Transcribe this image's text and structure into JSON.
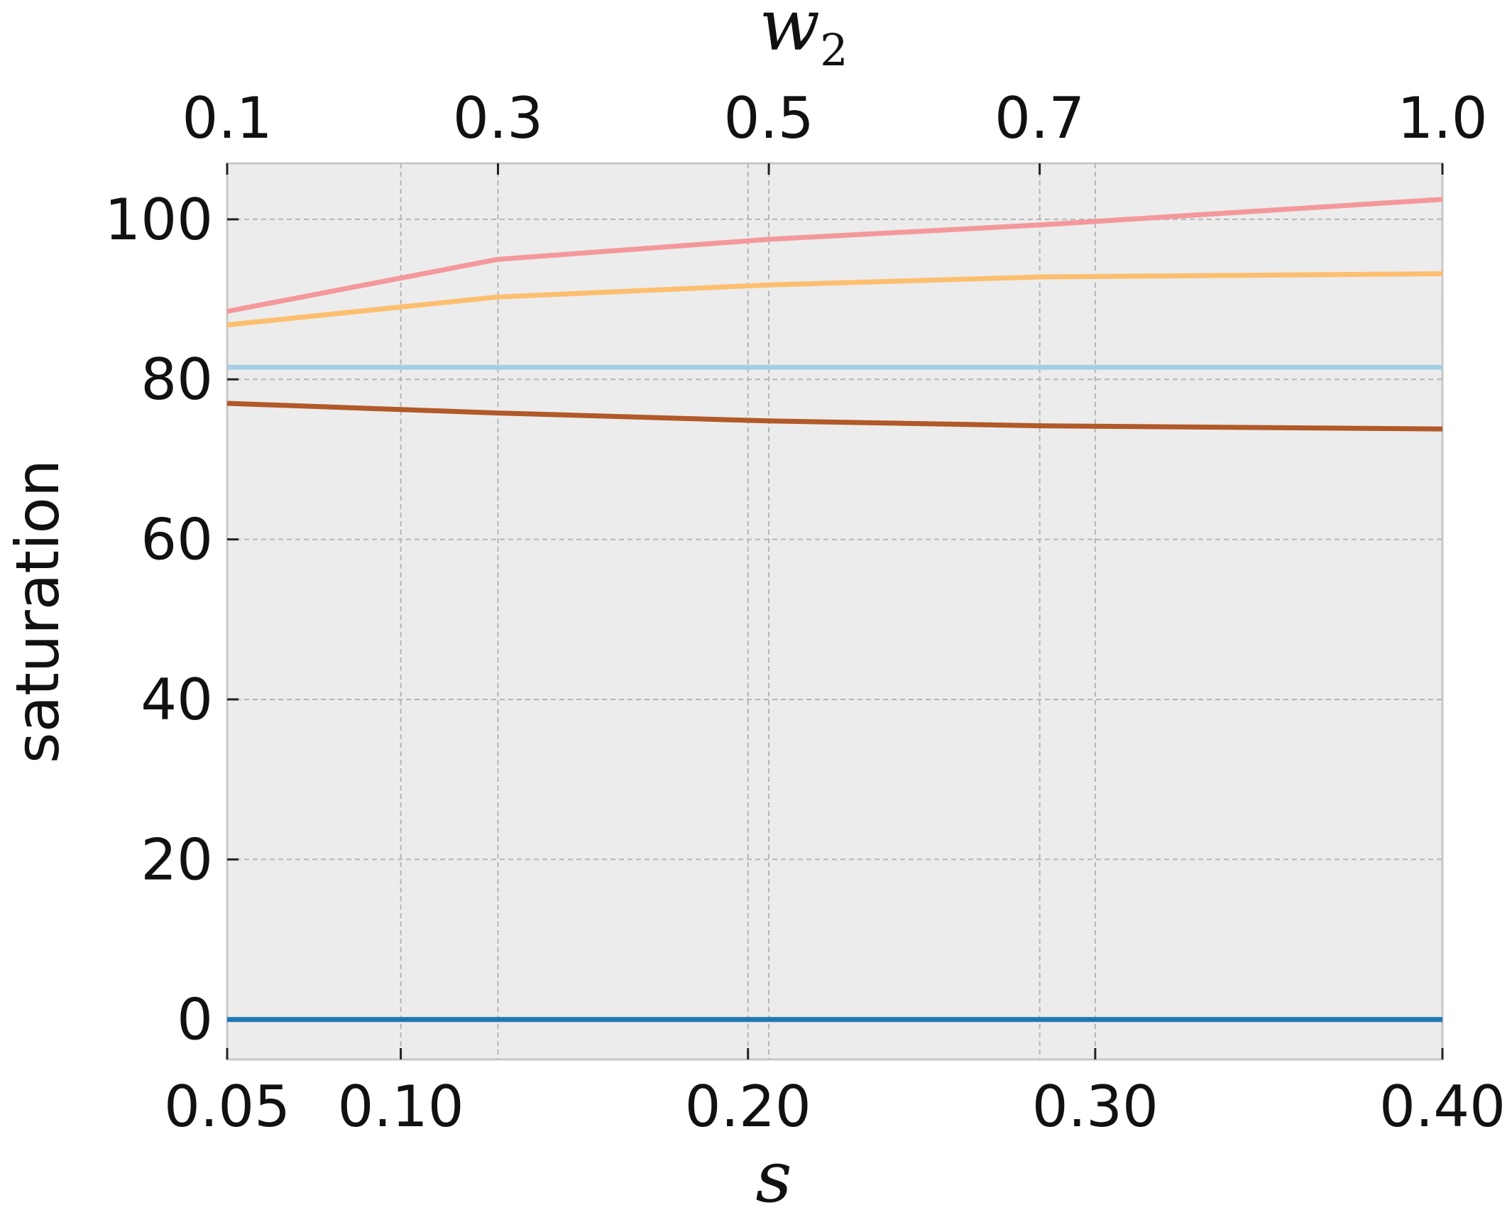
{
  "chart_data": {
    "type": "line",
    "ylabel": "saturation",
    "xlabel_bottom": "s",
    "xlabel_top_base": "w",
    "xlabel_top_sub": "2",
    "ylim": [
      -5,
      107
    ],
    "bottom_axis": {
      "xlim": [
        0.05,
        0.4
      ],
      "ticks": [
        0.05,
        0.1,
        0.2,
        0.3,
        0.4
      ],
      "tick_labels": [
        "0.05",
        "0.10",
        "0.20",
        "0.30",
        "0.40"
      ]
    },
    "top_axis": {
      "ticks": [
        0.1,
        0.3,
        0.5,
        0.7,
        1.0
      ],
      "tick_labels": [
        "0.1",
        "0.3",
        "0.5",
        "0.7",
        "1.0"
      ],
      "tick_positions_in_s": [
        0.05,
        0.128,
        0.206,
        0.284,
        0.4
      ]
    },
    "y_ticks": [
      0,
      20,
      40,
      60,
      80,
      100
    ],
    "y_tick_labels": [
      "0",
      "20",
      "40",
      "60",
      "80",
      "100"
    ],
    "grid": true,
    "background": "#ececec",
    "series": [
      {
        "color": "#f4989c",
        "x": [
          0.05,
          0.128,
          0.206,
          0.284,
          0.4
        ],
        "values": [
          88.5,
          95.0,
          97.5,
          99.3,
          102.5
        ]
      },
      {
        "color": "#fdbf6f",
        "x": [
          0.05,
          0.128,
          0.206,
          0.284,
          0.4
        ],
        "values": [
          86.8,
          90.3,
          91.8,
          92.8,
          93.2
        ]
      },
      {
        "color": "#a6cee3",
        "x": [
          0.05,
          0.128,
          0.206,
          0.284,
          0.4
        ],
        "values": [
          81.5,
          81.5,
          81.5,
          81.5,
          81.5
        ]
      },
      {
        "color": "#b15928",
        "x": [
          0.05,
          0.128,
          0.206,
          0.284,
          0.4
        ],
        "values": [
          77.0,
          75.8,
          74.8,
          74.2,
          73.8
        ]
      },
      {
        "color": "#1f78b4",
        "x": [
          0.05,
          0.128,
          0.206,
          0.284,
          0.4
        ],
        "values": [
          0.0,
          0.0,
          0.0,
          0.0,
          0.0
        ]
      }
    ]
  }
}
